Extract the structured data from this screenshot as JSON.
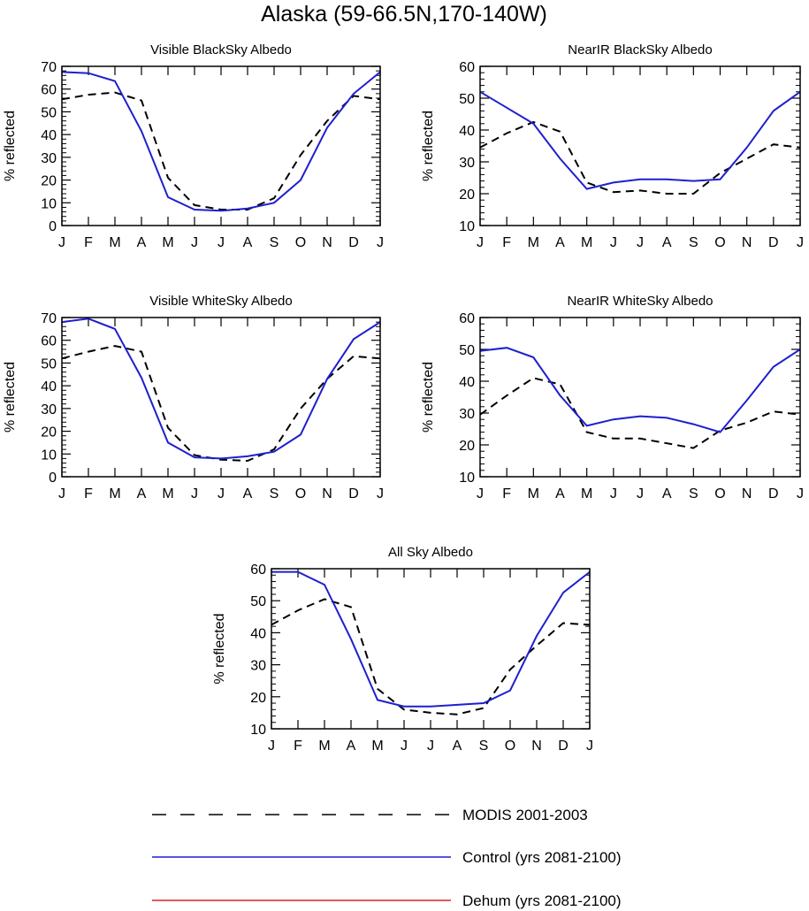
{
  "title": "Alaska (59-66.5N,170-140W)",
  "colors": {
    "modis": "#000000",
    "control": "#1f1fcf",
    "dehum": "#e02020"
  },
  "legend": [
    {
      "name": "MODIS 2001-2003",
      "style": "dashed",
      "color": "#000000"
    },
    {
      "name": "Control (yrs 2081-2100)",
      "style": "solid",
      "color": "#1f1fcf"
    },
    {
      "name": "Dehum (yrs 2081-2100)",
      "style": "solid",
      "color": "#e02020"
    }
  ],
  "chart_data": [
    {
      "type": "line",
      "title": "Visible BlackSky Albedo",
      "xlabel": "",
      "ylabel": "% reflected",
      "categories": [
        "J",
        "F",
        "M",
        "A",
        "M",
        "J",
        "J",
        "A",
        "S",
        "O",
        "N",
        "D",
        "J"
      ],
      "ylim": [
        0,
        70
      ],
      "yticks": [
        0,
        10,
        20,
        30,
        40,
        50,
        60,
        70
      ],
      "series": [
        {
          "name": "MODIS 2001-2003",
          "values": [
            55.5,
            57.5,
            58.5,
            55,
            21,
            9,
            7,
            7,
            12,
            31,
            46,
            57,
            55.5
          ]
        },
        {
          "name": "Control (yrs 2081-2100)",
          "values": [
            67.5,
            67,
            63.5,
            41.5,
            12.5,
            7,
            6.5,
            7.5,
            10,
            20,
            43,
            58,
            67.5
          ]
        }
      ]
    },
    {
      "type": "line",
      "title": "NearIR BlackSky Albedo",
      "xlabel": "",
      "ylabel": "% reflected",
      "categories": [
        "J",
        "F",
        "M",
        "A",
        "M",
        "J",
        "J",
        "A",
        "S",
        "O",
        "N",
        "D",
        "J"
      ],
      "ylim": [
        10,
        60
      ],
      "yticks": [
        10,
        20,
        30,
        40,
        50,
        60
      ],
      "series": [
        {
          "name": "MODIS 2001-2003",
          "values": [
            34.5,
            39,
            42.5,
            39.5,
            23.5,
            20.5,
            21,
            20,
            20,
            26.5,
            31,
            35.5,
            34.5
          ]
        },
        {
          "name": "Control (yrs 2081-2100)",
          "values": [
            52,
            47,
            42,
            31,
            21.5,
            23.5,
            24.5,
            24.5,
            24,
            24.5,
            34.5,
            46,
            52
          ]
        }
      ]
    },
    {
      "type": "line",
      "title": "Visible WhiteSky Albedo",
      "xlabel": "",
      "ylabel": "% reflected",
      "categories": [
        "J",
        "F",
        "M",
        "A",
        "M",
        "J",
        "J",
        "A",
        "S",
        "O",
        "N",
        "D",
        "J"
      ],
      "ylim": [
        0,
        70
      ],
      "yticks": [
        0,
        10,
        20,
        30,
        40,
        50,
        60,
        70
      ],
      "series": [
        {
          "name": "MODIS 2001-2003",
          "values": [
            52,
            55,
            57.5,
            55,
            21.5,
            9.5,
            7.5,
            7,
            12,
            30,
            43,
            53,
            52
          ]
        },
        {
          "name": "Control (yrs 2081-2100)",
          "values": [
            68,
            69.5,
            65,
            43.5,
            15,
            8.5,
            8,
            9,
            11,
            18.5,
            43,
            60.5,
            68
          ]
        }
      ]
    },
    {
      "type": "line",
      "title": "NearIR WhiteSky Albedo",
      "xlabel": "",
      "ylabel": "% reflected",
      "categories": [
        "J",
        "F",
        "M",
        "A",
        "M",
        "J",
        "J",
        "A",
        "S",
        "O",
        "N",
        "D",
        "J"
      ],
      "ylim": [
        10,
        60
      ],
      "yticks": [
        10,
        20,
        30,
        40,
        50,
        60
      ],
      "series": [
        {
          "name": "MODIS 2001-2003",
          "values": [
            29.5,
            35.5,
            41,
            39,
            24,
            22,
            22,
            20.5,
            19,
            24.5,
            27,
            30.5,
            29.5
          ]
        },
        {
          "name": "Control (yrs 2081-2100)",
          "values": [
            49.5,
            50.5,
            47.5,
            35.5,
            26,
            28,
            29,
            28.5,
            26.5,
            24,
            34,
            44.5,
            50
          ]
        }
      ]
    },
    {
      "type": "line",
      "title": "All Sky Albedo",
      "xlabel": "",
      "ylabel": "% reflected",
      "categories": [
        "J",
        "F",
        "M",
        "A",
        "M",
        "J",
        "J",
        "A",
        "S",
        "O",
        "N",
        "D",
        "J"
      ],
      "ylim": [
        10,
        60
      ],
      "yticks": [
        10,
        20,
        30,
        40,
        50,
        60
      ],
      "series": [
        {
          "name": "MODIS 2001-2003",
          "values": [
            42.5,
            47,
            50.5,
            48,
            22.5,
            16,
            15,
            14.5,
            16.5,
            28.5,
            36,
            43,
            42.5
          ]
        },
        {
          "name": "Control (yrs 2081-2100)",
          "values": [
            59,
            59,
            55,
            38,
            19,
            17,
            17,
            17.5,
            18,
            22,
            39,
            52.5,
            59
          ]
        }
      ]
    }
  ]
}
